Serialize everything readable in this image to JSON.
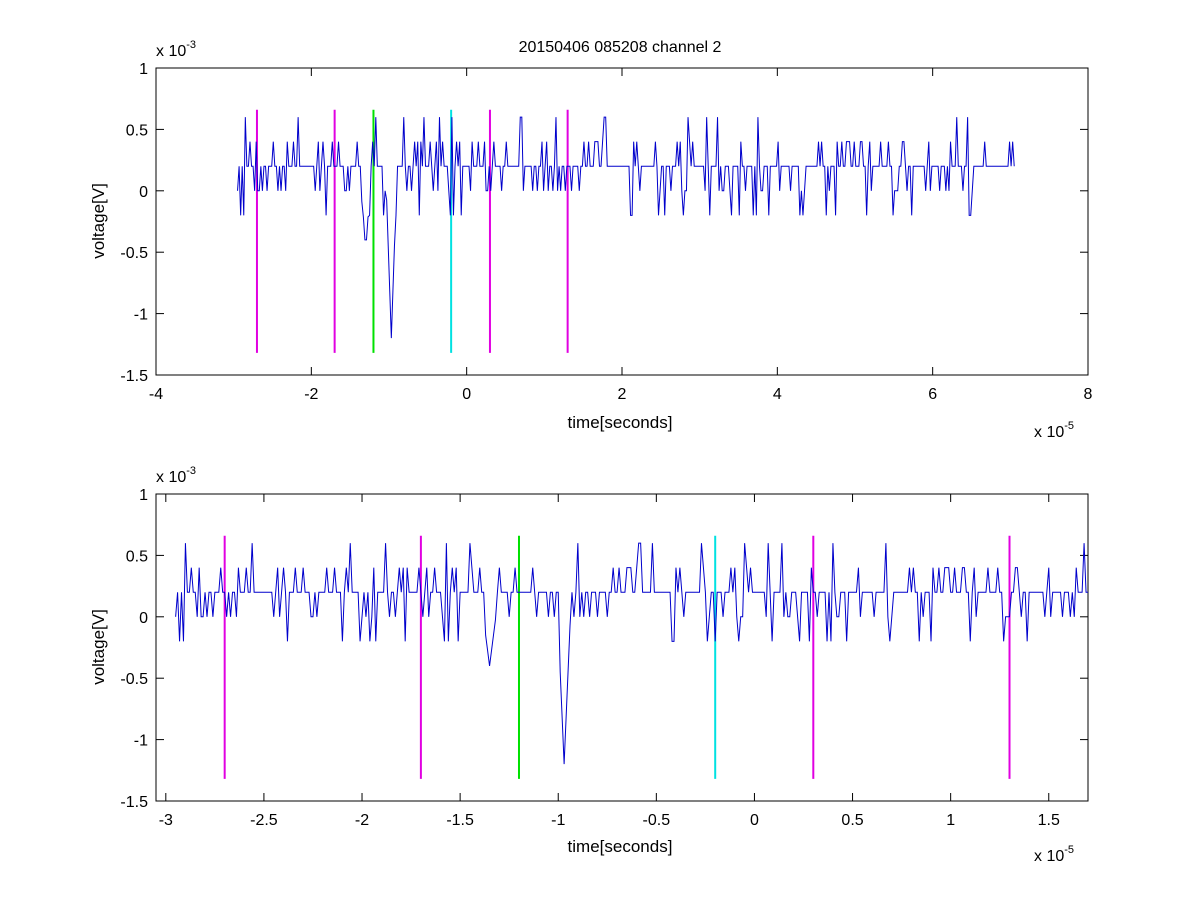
{
  "chart_data": [
    {
      "type": "line",
      "title": "20150406 085208 channel 2",
      "xlabel": "time[seconds]",
      "ylabel": "voltage[V]",
      "x_exponent_label": "x 10",
      "x_exponent": "-5",
      "y_exponent_label": "x 10",
      "y_exponent": "-3",
      "xlim": [
        -4,
        8
      ],
      "ylim": [
        -1.5,
        1
      ],
      "xticks": [
        -4,
        -2,
        0,
        2,
        4,
        6,
        8
      ],
      "xtick_labels": [
        "-4",
        "-2",
        "0",
        "2",
        "4",
        "6",
        "8"
      ],
      "yticks": [
        -1.5,
        -1,
        -0.5,
        0,
        0.5,
        1
      ],
      "ytick_labels": [
        "-1.5",
        "-1",
        "-0.5",
        "0",
        "0.5",
        "1"
      ],
      "grid": false,
      "signal": {
        "color": "#0000cc",
        "x_range": [
          -2.95,
          7.05
        ],
        "baseline": 0.2,
        "levels": [
          -0.2,
          0,
          0.2,
          0.4,
          0.6
        ],
        "dips": [
          {
            "x": -1.3,
            "y": -0.4
          },
          {
            "x": -0.97,
            "y": -1.2
          },
          {
            "x": -0.55,
            "y": 0.6
          },
          {
            "x": -0.35,
            "y": 0.6
          },
          {
            "x": 0.7,
            "y": 0.6
          },
          {
            "x": 6.45,
            "y": 0.6
          }
        ]
      },
      "markers": [
        {
          "x": -2.7,
          "color": "#e100e1",
          "y_range": [
            -1.32,
            0.66
          ]
        },
        {
          "x": -1.7,
          "color": "#e100e1",
          "y_range": [
            -1.32,
            0.66
          ]
        },
        {
          "x": -1.2,
          "color": "#00e100",
          "y_range": [
            -1.32,
            0.66
          ]
        },
        {
          "x": -0.2,
          "color": "#00e1e1",
          "y_range": [
            -1.32,
            0.66
          ]
        },
        {
          "x": 0.3,
          "color": "#e100e1",
          "y_range": [
            -1.32,
            0.66
          ]
        },
        {
          "x": 1.3,
          "color": "#e100e1",
          "y_range": [
            -1.32,
            0.66
          ]
        }
      ]
    },
    {
      "type": "line",
      "title": "",
      "xlabel": "time[seconds]",
      "ylabel": "voltage[V]",
      "x_exponent_label": "x 10",
      "x_exponent": "-5",
      "y_exponent_label": "x 10",
      "y_exponent": "-3",
      "xlim": [
        -3.05,
        1.7
      ],
      "ylim": [
        -1.5,
        1
      ],
      "xticks": [
        -3,
        -2.5,
        -2,
        -1.5,
        -1,
        -0.5,
        0,
        0.5,
        1,
        1.5
      ],
      "xtick_labels": [
        "-3",
        "-2.5",
        "-2",
        "-1.5",
        "-1",
        "-0.5",
        "0",
        "0.5",
        "1",
        "1.5"
      ],
      "yticks": [
        -1.5,
        -1,
        -0.5,
        0,
        0.5,
        1
      ],
      "ytick_labels": [
        "-1.5",
        "-1",
        "-0.5",
        "0",
        "0.5",
        "1"
      ],
      "grid": false,
      "signal": {
        "color": "#0000cc",
        "x_range": [
          -2.95,
          1.7
        ],
        "baseline": 0.2,
        "levels": [
          -0.2,
          0,
          0.2,
          0.4,
          0.6
        ],
        "dips": [
          {
            "x": -1.35,
            "y": -0.4
          },
          {
            "x": -0.97,
            "y": -1.2
          },
          {
            "x": -0.52,
            "y": 0.6
          },
          {
            "x": -0.27,
            "y": 0.6
          },
          {
            "x": 0.67,
            "y": 0.6
          },
          {
            "x": -1.45,
            "y": 0.6
          }
        ]
      },
      "markers": [
        {
          "x": -2.7,
          "color": "#e100e1",
          "y_range": [
            -1.32,
            0.66
          ]
        },
        {
          "x": -1.7,
          "color": "#e100e1",
          "y_range": [
            -1.32,
            0.66
          ]
        },
        {
          "x": -1.2,
          "color": "#00e100",
          "y_range": [
            -1.32,
            0.66
          ]
        },
        {
          "x": -0.2,
          "color": "#00e1e1",
          "y_range": [
            -1.32,
            0.66
          ]
        },
        {
          "x": 0.3,
          "color": "#e100e1",
          "y_range": [
            -1.32,
            0.66
          ]
        },
        {
          "x": 1.3,
          "color": "#e100e1",
          "y_range": [
            -1.32,
            0.66
          ]
        }
      ]
    }
  ]
}
